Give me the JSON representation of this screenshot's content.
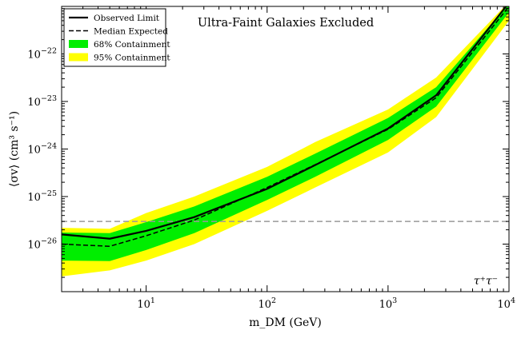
{
  "chart_data": {
    "type": "line",
    "title": "Ultra-Faint Galaxies Excluded",
    "xlabel": "m_DM (GeV)",
    "ylabel": "⟨σv⟩ (cm³ s⁻¹)",
    "xscale": "log",
    "yscale": "log",
    "xlim": [
      2,
      10000
    ],
    "ylim": [
      1e-27,
      1e-21
    ],
    "x_ticks": [
      {
        "value": 10,
        "base": "10",
        "exp": "1"
      },
      {
        "value": 100,
        "base": "10",
        "exp": "2"
      },
      {
        "value": 1000,
        "base": "10",
        "exp": "3"
      },
      {
        "value": 10000,
        "base": "10",
        "exp": "4"
      }
    ],
    "y_ticks": [
      {
        "value": 1e-26,
        "base": "10",
        "exp": "−26"
      },
      {
        "value": 1e-25,
        "base": "10",
        "exp": "−25"
      },
      {
        "value": 1e-24,
        "base": "10",
        "exp": "−24"
      },
      {
        "value": 1e-23,
        "base": "10",
        "exp": "−23"
      },
      {
        "value": 1e-22,
        "base": "10",
        "exp": "−22"
      }
    ],
    "x": [
      2,
      5,
      10,
      25,
      100,
      250,
      1000,
      2500,
      10000
    ],
    "series": [
      {
        "name": "Observed Limit",
        "style": "solid",
        "values": [
          1.6e-26,
          1.3e-26,
          1.9e-26,
          3.7e-26,
          1.45e-25,
          4.6e-25,
          2.7e-24,
          1.35e-23,
          1.2e-21
        ]
      },
      {
        "name": "Median Expected",
        "style": "dashed",
        "values": [
          1e-26,
          9e-27,
          1.5e-26,
          3.2e-26,
          1.55e-25,
          4.7e-25,
          2.6e-24,
          1.2e-23,
          1e-21
        ]
      }
    ],
    "bands": [
      {
        "name": "95% Containment",
        "color": "#ffff00",
        "lower": [
          2.1e-27,
          2.8e-27,
          4.5e-27,
          1e-26,
          5e-26,
          1.55e-25,
          8.5e-25,
          4.7e-24,
          5e-22
        ],
        "upper": [
          2.2e-26,
          2.1e-26,
          4.5e-26,
          1e-25,
          4.2e-25,
          1.4e-24,
          6.8e-24,
          3.2e-23,
          1.25e-21
        ]
      },
      {
        "name": "68% Containment",
        "color": "#00ee00",
        "lower": [
          4.5e-27,
          4.4e-27,
          7.5e-27,
          1.7e-26,
          8.5e-26,
          2.6e-25,
          1.55e-24,
          7.8e-24,
          7.5e-22
        ],
        "upper": [
          1.75e-26,
          1.7e-26,
          2.9e-26,
          6.2e-26,
          2.6e-25,
          8e-25,
          4.5e-24,
          2e-23,
          1.15e-21
        ]
      }
    ],
    "reference_line": {
      "value": 3e-26,
      "color": "#999999",
      "style": "dashed"
    },
    "legend": {
      "position": "top-left",
      "entries": [
        {
          "label": "Observed Limit",
          "style": "solid-line"
        },
        {
          "label": "Median Expected",
          "style": "dashed-line"
        },
        {
          "label": "68% Containment",
          "style": "patch",
          "color": "#00ee00"
        },
        {
          "label": "95% Containment",
          "style": "patch",
          "color": "#ffff00"
        }
      ]
    },
    "annotation": "τ⁺τ⁻",
    "grid": false
  }
}
